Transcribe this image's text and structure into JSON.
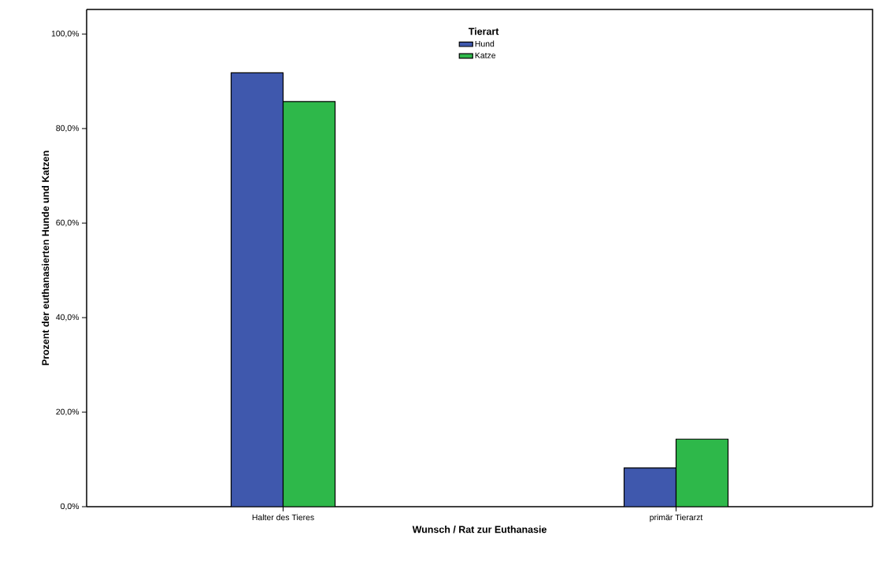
{
  "chart_data": {
    "type": "bar",
    "xlabel": "Wunsch / Rat zur Euthanasie",
    "ylabel": "Prozent der euthanasierten Hunde und Katzen",
    "legend_title": "Tierart",
    "categories": [
      "Halter des Tieres",
      "primär Tierarzt"
    ],
    "series": [
      {
        "name": "Hund",
        "color": "#3f58ad",
        "values": [
          91.8,
          8.2
        ]
      },
      {
        "name": "Katze",
        "color": "#2eb84a",
        "values": [
          85.7,
          14.3
        ]
      }
    ],
    "ylim": [
      0,
      105.2
    ],
    "yticks": [
      {
        "value": 0,
        "label": "0,0%"
      },
      {
        "value": 20,
        "label": "20,0%"
      },
      {
        "value": 40,
        "label": "40,0%"
      },
      {
        "value": 60,
        "label": "60,0%"
      },
      {
        "value": 80,
        "label": "80,0%"
      },
      {
        "value": 100,
        "label": "100,0%"
      }
    ],
    "grid": false,
    "legend": "top"
  }
}
